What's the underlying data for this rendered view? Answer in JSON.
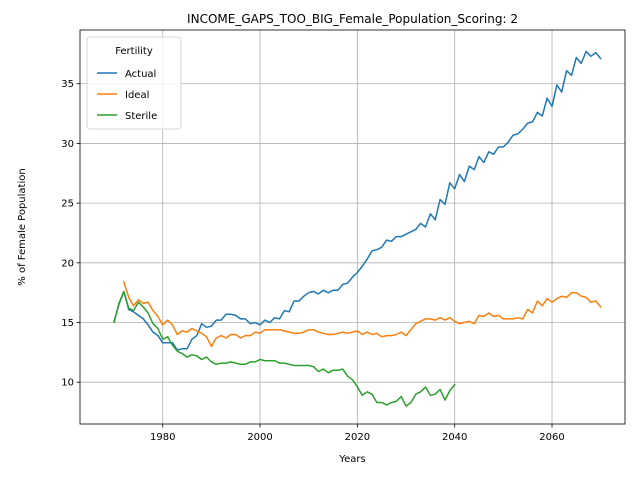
{
  "chart_data": {
    "type": "line",
    "title": "INCOME_GAPS_TOO_BIG_Female_Population_Scoring: 2",
    "xlabel": "Years",
    "ylabel": "% of Female Population",
    "xlim": [
      1963,
      2075
    ],
    "ylim": [
      6.5,
      39.5
    ],
    "xticks": [
      1980,
      2000,
      2020,
      2040,
      2060
    ],
    "yticks": [
      10,
      15,
      20,
      25,
      30,
      35
    ],
    "grid": true,
    "legend": {
      "title": "Fertility",
      "placement": "top-left"
    },
    "colors": {
      "Actual": "#1f77b4",
      "Ideal": "#ff7f0e",
      "Sterile": "#2ca02c"
    },
    "series": [
      {
        "name": "Actual",
        "x": [
          1970,
          1971,
          1972,
          1973,
          1974,
          1975,
          1976,
          1977,
          1978,
          1979,
          1980,
          1981,
          1982,
          1983,
          1984,
          1985,
          1986,
          1987,
          1988,
          1989,
          1990,
          1991,
          1992,
          1993,
          1994,
          1995,
          1996,
          1997,
          1998,
          1999,
          2000,
          2001,
          2002,
          2003,
          2004,
          2005,
          2006,
          2007,
          2008,
          2009,
          2010,
          2011,
          2012,
          2013,
          2014,
          2015,
          2016,
          2017,
          2018,
          2019,
          2020,
          2021,
          2022,
          2023,
          2024,
          2025,
          2026,
          2027,
          2028,
          2029,
          2030,
          2031,
          2032,
          2033,
          2034,
          2035,
          2036,
          2037,
          2038,
          2039,
          2040,
          2041,
          2042,
          2043,
          2044,
          2045,
          2046,
          2047,
          2048,
          2049,
          2050,
          2051,
          2052,
          2053,
          2054,
          2055,
          2056,
          2057,
          2058,
          2059,
          2060,
          2061,
          2062,
          2063,
          2064,
          2065,
          2066,
          2067,
          2068,
          2069,
          2070
        ],
        "values": [
          15.1,
          16.5,
          17.6,
          16.1,
          15.9,
          15.6,
          15.3,
          14.8,
          14.2,
          13.9,
          13.3,
          13.3,
          13.3,
          12.7,
          12.8,
          12.8,
          13.6,
          13.9,
          14.9,
          14.6,
          14.7,
          15.2,
          15.2,
          15.7,
          15.7,
          15.6,
          15.3,
          15.3,
          14.9,
          15.0,
          14.8,
          15.2,
          15.0,
          15.4,
          15.3,
          16.0,
          15.9,
          16.8,
          16.8,
          17.2,
          17.5,
          17.6,
          17.4,
          17.7,
          17.5,
          17.7,
          17.7,
          18.2,
          18.3,
          18.8,
          19.2,
          19.7,
          20.3,
          21.0,
          21.1,
          21.3,
          21.9,
          21.8,
          22.2,
          22.2,
          22.4,
          22.6,
          22.8,
          23.3,
          23.0,
          24.1,
          23.6,
          25.3,
          24.9,
          26.7,
          26.2,
          27.4,
          26.8,
          28.1,
          27.8,
          28.9,
          28.4,
          29.3,
          29.1,
          29.7,
          29.7,
          30.1,
          30.7,
          30.8,
          31.2,
          31.7,
          31.8,
          32.6,
          32.3,
          33.8,
          33.1,
          34.9,
          34.3,
          36.1,
          35.7,
          37.2,
          36.7,
          37.7,
          37.3,
          37.6,
          37.1
        ]
      },
      {
        "name": "Ideal",
        "x": [
          1972,
          1973,
          1974,
          1975,
          1976,
          1977,
          1978,
          1979,
          1980,
          1981,
          1982,
          1983,
          1984,
          1985,
          1986,
          1987,
          1988,
          1989,
          1990,
          1991,
          1992,
          1993,
          1994,
          1995,
          1996,
          1997,
          1998,
          1999,
          2000,
          2001,
          2002,
          2003,
          2004,
          2005,
          2006,
          2007,
          2008,
          2009,
          2010,
          2011,
          2012,
          2013,
          2014,
          2015,
          2016,
          2017,
          2018,
          2019,
          2020,
          2021,
          2022,
          2023,
          2024,
          2025,
          2026,
          2027,
          2028,
          2029,
          2030,
          2031,
          2032,
          2033,
          2034,
          2035,
          2036,
          2037,
          2038,
          2039,
          2040,
          2041,
          2042,
          2043,
          2044,
          2045,
          2046,
          2047,
          2048,
          2049,
          2050,
          2051,
          2052,
          2053,
          2054,
          2055,
          2056,
          2057,
          2058,
          2059,
          2060,
          2061,
          2062,
          2063,
          2064,
          2065,
          2066,
          2067,
          2068,
          2069,
          2070
        ],
        "values": [
          18.4,
          17.1,
          16.4,
          16.9,
          16.6,
          16.7,
          16.0,
          15.5,
          14.8,
          15.2,
          14.8,
          14.0,
          14.3,
          14.2,
          14.5,
          14.3,
          14.1,
          13.8,
          13.0,
          13.7,
          13.9,
          13.7,
          14.0,
          14.0,
          13.7,
          13.9,
          13.9,
          14.2,
          14.1,
          14.4,
          14.4,
          14.4,
          14.4,
          14.3,
          14.2,
          14.1,
          14.1,
          14.2,
          14.4,
          14.4,
          14.2,
          14.1,
          14.0,
          14.0,
          14.1,
          14.2,
          14.1,
          14.2,
          14.3,
          14.0,
          14.2,
          14.0,
          14.1,
          13.8,
          13.9,
          13.9,
          14.0,
          14.2,
          13.9,
          14.4,
          14.9,
          15.1,
          15.3,
          15.3,
          15.2,
          15.4,
          15.2,
          15.4,
          15.1,
          14.9,
          15.0,
          15.1,
          14.9,
          15.6,
          15.5,
          15.8,
          15.5,
          15.6,
          15.3,
          15.3,
          15.3,
          15.4,
          15.3,
          16.1,
          15.8,
          16.8,
          16.4,
          17.0,
          16.7,
          17.0,
          17.2,
          17.1,
          17.5,
          17.5,
          17.2,
          17.1,
          16.7,
          16.8,
          16.3
        ]
      },
      {
        "name": "Sterile",
        "x": [
          1970,
          1971,
          1972,
          1973,
          1974,
          1975,
          1976,
          1977,
          1978,
          1979,
          1980,
          1981,
          1982,
          1983,
          1984,
          1985,
          1986,
          1987,
          1988,
          1989,
          1990,
          1991,
          1992,
          1993,
          1994,
          1995,
          1996,
          1997,
          1998,
          1999,
          2000,
          2001,
          2002,
          2003,
          2004,
          2005,
          2006,
          2007,
          2008,
          2009,
          2010,
          2011,
          2012,
          2013,
          2014,
          2015,
          2016,
          2017,
          2018,
          2019,
          2020,
          2021,
          2022,
          2023,
          2024,
          2025,
          2026,
          2027,
          2028,
          2029,
          2030,
          2031,
          2032,
          2033,
          2034,
          2035,
          2036,
          2037,
          2038,
          2039,
          2040
        ],
        "values": [
          15.0,
          16.6,
          17.6,
          16.2,
          16.0,
          16.7,
          16.3,
          15.8,
          14.9,
          14.5,
          13.6,
          13.8,
          13.1,
          12.6,
          12.4,
          12.1,
          12.3,
          12.2,
          11.9,
          12.1,
          11.7,
          11.5,
          11.6,
          11.6,
          11.7,
          11.6,
          11.5,
          11.5,
          11.7,
          11.7,
          11.9,
          11.8,
          11.8,
          11.8,
          11.6,
          11.6,
          11.5,
          11.4,
          11.4,
          11.4,
          11.4,
          11.3,
          10.9,
          11.1,
          10.8,
          11.0,
          11.0,
          11.1,
          10.5,
          10.2,
          9.6,
          8.9,
          9.2,
          9.0,
          8.3,
          8.3,
          8.1,
          8.3,
          8.4,
          8.8,
          8.0,
          8.3,
          9.0,
          9.2,
          9.6,
          8.9,
          9.0,
          9.4,
          8.5,
          9.3,
          9.8
        ]
      }
    ]
  }
}
